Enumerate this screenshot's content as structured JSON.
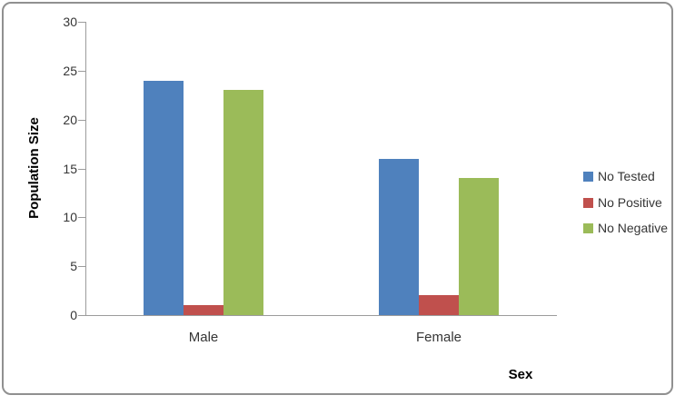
{
  "chart_data": {
    "type": "bar",
    "title": "",
    "categories": [
      "Male",
      "Female"
    ],
    "series": [
      {
        "name": "No Tested",
        "color": "#4F81BD",
        "values": [
          24,
          16
        ]
      },
      {
        "name": "No Positive",
        "color": "#C0504D",
        "values": [
          1,
          2
        ]
      },
      {
        "name": "No Negative",
        "color": "#9BBB59",
        "values": [
          23,
          14
        ]
      }
    ],
    "xlabel": "Sex",
    "ylabel": "Population Size",
    "ylim": [
      0,
      30
    ],
    "yticks": [
      0,
      5,
      10,
      15,
      20,
      25,
      30
    ],
    "grid": false,
    "legend_position": "right",
    "colors": {
      "axis": "#9C9C9C",
      "text": "#353535",
      "frame_border": "#909090",
      "background": "#FFFFFF"
    }
  }
}
